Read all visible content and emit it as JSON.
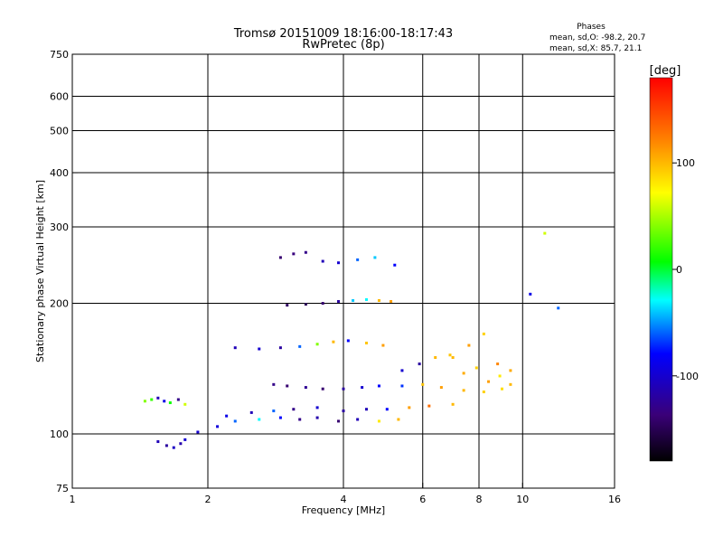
{
  "chart_data": {
    "type": "scatter",
    "title": "Tromsø 20151009 18:16:00-18:17:43",
    "subtitle": "RwPretec (8p)",
    "xlabel": "Frequency [MHz]",
    "ylabel": "Stationary phase Virtual Height [km]",
    "x_scale": "log",
    "y_scale": "log",
    "xlim": [
      1,
      16
    ],
    "ylim": [
      75,
      750
    ],
    "x_ticks": [
      1,
      2,
      4,
      6,
      8,
      10,
      16
    ],
    "y_ticks": [
      75,
      100,
      200,
      300,
      400,
      500,
      600,
      750
    ],
    "x_gridlines": [
      2,
      4,
      6,
      8,
      10
    ],
    "y_gridlines": [
      100,
      200,
      300,
      400,
      500,
      600
    ],
    "grid": true,
    "stats": {
      "header": "Phases",
      "line_o": "mean, sd,O: -98.2, 20.7",
      "line_x": "mean, sd,X: 85.7, 21.1"
    },
    "colorbar": {
      "unit_label": "[deg]",
      "range": [
        -180,
        180
      ],
      "ticks": [
        100,
        0,
        -100
      ],
      "ticks_text": [
        "100",
        "0",
        "-100"
      ]
    },
    "series": [
      {
        "x": [
          1.55,
          1.62,
          1.68,
          1.74,
          1.78
        ],
        "y": [
          96,
          94,
          93,
          95,
          97
        ],
        "phase": [
          -110,
          -120,
          -105,
          -115,
          -100
        ]
      },
      {
        "x": [
          1.45,
          1.5,
          1.55,
          1.6,
          1.65,
          1.72,
          1.78
        ],
        "y": [
          119,
          120,
          121,
          119,
          118,
          120,
          117
        ],
        "phase": [
          40,
          20,
          -110,
          -90,
          10,
          -130,
          60
        ]
      },
      {
        "x": [
          1.9,
          2.1,
          2.3,
          2.6,
          2.9,
          3.2,
          3.5,
          3.9,
          4.3,
          4.8,
          5.3
        ],
        "y": [
          101,
          104,
          107,
          108,
          109,
          108,
          109,
          107,
          108,
          107,
          108
        ],
        "phase": [
          -100,
          -95,
          -60,
          -30,
          -80,
          -130,
          -115,
          -140,
          -110,
          80,
          100
        ]
      },
      {
        "x": [
          2.2,
          2.5,
          2.8,
          3.1,
          3.5,
          4.0,
          4.5,
          5.0,
          5.6,
          6.2,
          7.0
        ],
        "y": [
          110,
          112,
          113,
          114,
          115,
          113,
          114,
          114,
          115,
          116,
          117
        ],
        "phase": [
          -90,
          -110,
          -60,
          -130,
          -100,
          -120,
          -110,
          -80,
          110,
          130,
          100
        ]
      },
      {
        "x": [
          2.8,
          3.0,
          3.3,
          3.6,
          4.0,
          4.4,
          4.8,
          5.4,
          6.0,
          6.6,
          7.4,
          8.2,
          9.0
        ],
        "y": [
          130,
          129,
          128,
          127,
          127,
          128,
          129,
          129,
          130,
          128,
          126,
          125,
          127
        ],
        "phase": [
          -130,
          -140,
          -125,
          -140,
          -120,
          -100,
          -80,
          -70,
          95,
          110,
          100,
          90,
          85
        ]
      },
      {
        "x": [
          2.3,
          2.6,
          2.9,
          3.2,
          3.5,
          3.8,
          4.1,
          4.5,
          4.9
        ],
        "y": [
          158,
          157,
          158,
          159,
          161,
          163,
          164,
          162,
          160
        ],
        "phase": [
          -110,
          -100,
          -120,
          -60,
          40,
          100,
          -80,
          95,
          110
        ]
      },
      {
        "x": [
          3.0,
          3.3,
          3.6,
          3.9,
          4.2,
          4.5,
          4.8,
          5.1
        ],
        "y": [
          198,
          199,
          200,
          202,
          203,
          204,
          203,
          202
        ],
        "phase": [
          -145,
          -150,
          -140,
          -120,
          -40,
          -30,
          100,
          110
        ]
      },
      {
        "x": [
          2.9,
          3.1,
          3.3,
          3.6,
          3.9,
          4.3,
          4.7,
          5.2
        ],
        "y": [
          255,
          260,
          262,
          250,
          248,
          252,
          255,
          245
        ],
        "phase": [
          -140,
          -135,
          -130,
          -110,
          -100,
          -60,
          -40,
          -80
        ]
      },
      {
        "x": [
          7.0,
          7.6,
          8.2,
          8.8,
          9.4,
          10.4,
          11.2,
          12.0
        ],
        "y": [
          150,
          160,
          170,
          145,
          140,
          210,
          290,
          195
        ],
        "phase": [
          100,
          110,
          90,
          120,
          105,
          -90,
          60,
          -60
        ]
      },
      {
        "x": [
          5.4,
          5.9,
          6.4,
          6.9,
          7.4,
          7.9,
          8.4,
          8.9,
          9.4
        ],
        "y": [
          140,
          145,
          150,
          152,
          138,
          142,
          132,
          136,
          130
        ],
        "phase": [
          -100,
          -120,
          100,
          95,
          105,
          90,
          110,
          80,
          100
        ]
      }
    ]
  }
}
